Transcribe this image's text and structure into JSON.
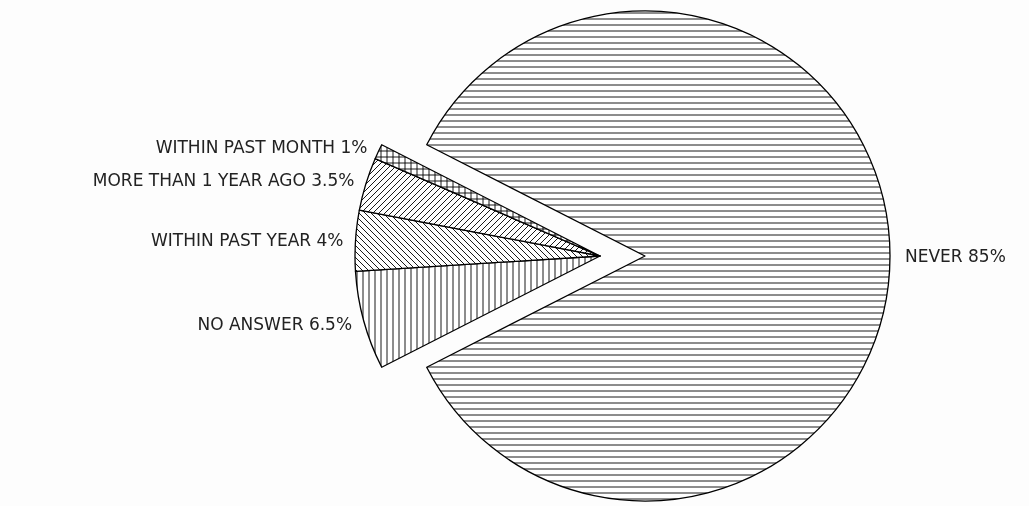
{
  "chart_data": {
    "type": "pie",
    "categories": [
      "NO ANSWER",
      "WITHIN PAST YEAR",
      "MORE THAN 1 YEAR AGO",
      "WITHIN PAST MONTH",
      "NEVER"
    ],
    "values": [
      6.5,
      4,
      3.5,
      1,
      85
    ],
    "colors": [
      "#000000",
      "#000000",
      "#000000",
      "#000000",
      "#000000"
    ],
    "value_labels": [
      "6.5%",
      "4%",
      "3.5%",
      "1%",
      "85%"
    ]
  }
}
